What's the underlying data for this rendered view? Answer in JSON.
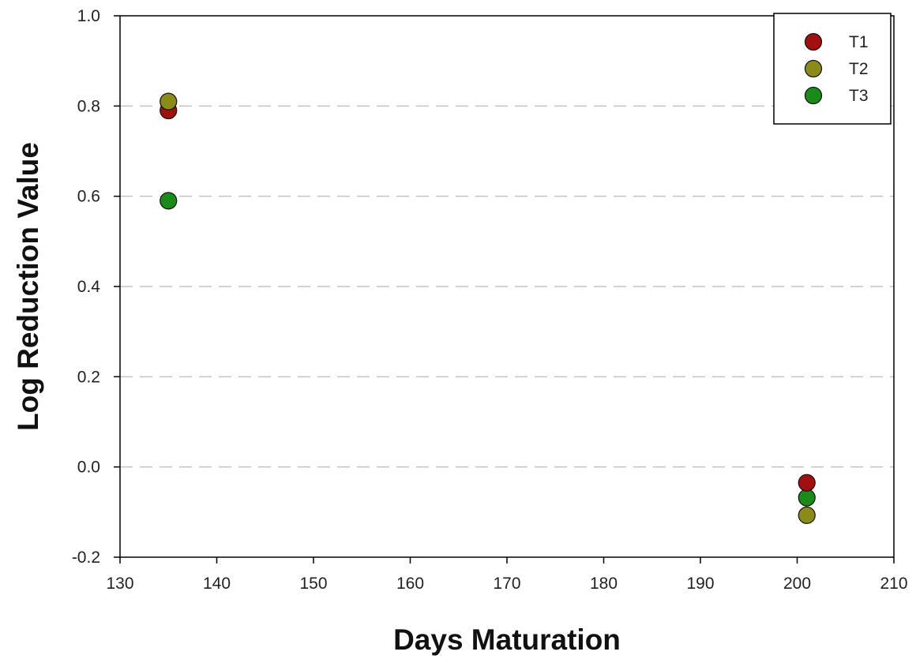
{
  "chart_data": {
    "type": "scatter",
    "title": "",
    "xlabel": "Days Maturation",
    "ylabel": "Log Reduction Value",
    "xlim": [
      130,
      210
    ],
    "ylim": [
      -0.2,
      1.0
    ],
    "xticks": [
      "130",
      "140",
      "150",
      "160",
      "170",
      "180",
      "190",
      "200",
      "210"
    ],
    "yticks": [
      "-0.2",
      "0.0",
      "0.2",
      "0.4",
      "0.6",
      "0.8",
      "1.0"
    ],
    "grid": "horizontal dashed",
    "legend_position": "top-right",
    "series": [
      {
        "name": "T1",
        "color": "#a01010",
        "points": [
          {
            "x": 135,
            "y": 0.79
          },
          {
            "x": 201,
            "y": -0.035
          }
        ]
      },
      {
        "name": "T2",
        "color": "#8c8a18",
        "points": [
          {
            "x": 135,
            "y": 0.81
          },
          {
            "x": 201,
            "y": -0.107
          }
        ]
      },
      {
        "name": "T3",
        "color": "#1a8a1a",
        "points": [
          {
            "x": 135,
            "y": 0.59
          },
          {
            "x": 201,
            "y": -0.068
          }
        ]
      }
    ]
  }
}
